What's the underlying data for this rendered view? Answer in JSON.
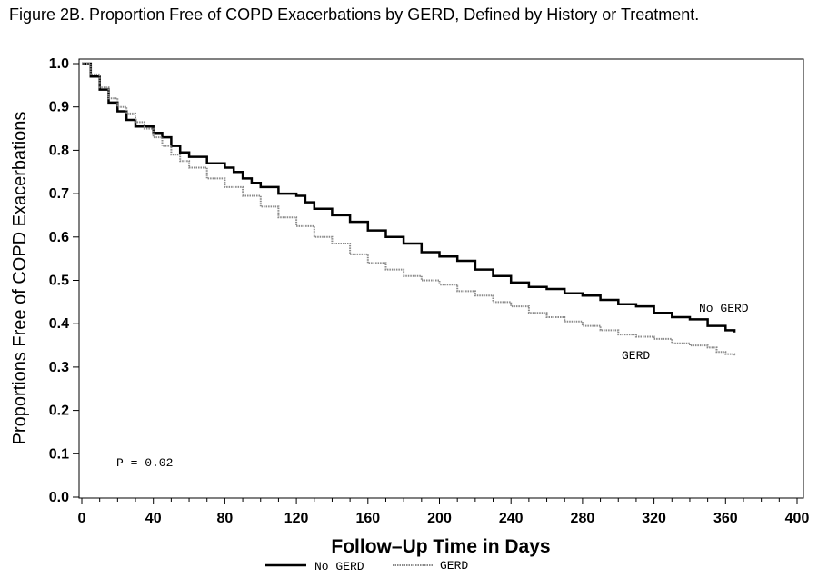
{
  "figure_title": "Figure 2B. Proportion Free of COPD Exacerbations by GERD, Defined by History or Treatment.",
  "chart_data": {
    "type": "line",
    "step": true,
    "xlabel": "Follow–Up Time in Days",
    "ylabel": "Proportions Free of COPD Exacerbations",
    "xlim": [
      0,
      400
    ],
    "ylim": [
      0,
      1.0
    ],
    "x_ticks": [
      "0",
      "40",
      "80",
      "120",
      "160",
      "200",
      "240",
      "280",
      "320",
      "360",
      "400"
    ],
    "y_ticks": [
      "0.0",
      "0.1",
      "0.2",
      "0.3",
      "0.4",
      "0.5",
      "0.6",
      "0.7",
      "0.8",
      "0.9",
      "1.0"
    ],
    "grid": false,
    "annotation": "P = 0.02",
    "legend_position": "bottom",
    "series": [
      {
        "name": "No GERD",
        "color": "#000000",
        "style": "solid",
        "end_label": "No GERD",
        "points": [
          [
            0,
            1.0
          ],
          [
            5,
            0.97
          ],
          [
            10,
            0.94
          ],
          [
            15,
            0.91
          ],
          [
            20,
            0.89
          ],
          [
            25,
            0.87
          ],
          [
            30,
            0.855
          ],
          [
            40,
            0.84
          ],
          [
            45,
            0.83
          ],
          [
            50,
            0.81
          ],
          [
            55,
            0.795
          ],
          [
            60,
            0.785
          ],
          [
            70,
            0.77
          ],
          [
            80,
            0.76
          ],
          [
            85,
            0.75
          ],
          [
            90,
            0.735
          ],
          [
            95,
            0.725
          ],
          [
            100,
            0.715
          ],
          [
            110,
            0.7
          ],
          [
            120,
            0.695
          ],
          [
            125,
            0.68
          ],
          [
            130,
            0.665
          ],
          [
            140,
            0.65
          ],
          [
            150,
            0.635
          ],
          [
            160,
            0.615
          ],
          [
            170,
            0.6
          ],
          [
            180,
            0.585
          ],
          [
            190,
            0.565
          ],
          [
            200,
            0.555
          ],
          [
            210,
            0.545
          ],
          [
            220,
            0.525
          ],
          [
            230,
            0.51
          ],
          [
            240,
            0.495
          ],
          [
            250,
            0.485
          ],
          [
            260,
            0.48
          ],
          [
            270,
            0.47
          ],
          [
            280,
            0.465
          ],
          [
            290,
            0.455
          ],
          [
            300,
            0.445
          ],
          [
            310,
            0.44
          ],
          [
            320,
            0.425
          ],
          [
            330,
            0.415
          ],
          [
            340,
            0.41
          ],
          [
            350,
            0.395
          ],
          [
            360,
            0.385
          ],
          [
            365,
            0.38
          ]
        ]
      },
      {
        "name": "GERD",
        "color": "#8a8a8a",
        "style": "dotted",
        "end_label": "GERD",
        "points": [
          [
            0,
            1.0
          ],
          [
            5,
            0.975
          ],
          [
            10,
            0.945
          ],
          [
            15,
            0.92
          ],
          [
            20,
            0.9
          ],
          [
            25,
            0.885
          ],
          [
            30,
            0.865
          ],
          [
            35,
            0.85
          ],
          [
            40,
            0.83
          ],
          [
            45,
            0.81
          ],
          [
            50,
            0.79
          ],
          [
            55,
            0.775
          ],
          [
            60,
            0.76
          ],
          [
            70,
            0.735
          ],
          [
            80,
            0.715
          ],
          [
            90,
            0.695
          ],
          [
            100,
            0.67
          ],
          [
            110,
            0.645
          ],
          [
            120,
            0.625
          ],
          [
            130,
            0.6
          ],
          [
            140,
            0.585
          ],
          [
            150,
            0.56
          ],
          [
            160,
            0.54
          ],
          [
            170,
            0.525
          ],
          [
            180,
            0.51
          ],
          [
            190,
            0.5
          ],
          [
            200,
            0.49
          ],
          [
            210,
            0.475
          ],
          [
            220,
            0.465
          ],
          [
            230,
            0.45
          ],
          [
            240,
            0.44
          ],
          [
            250,
            0.425
          ],
          [
            260,
            0.415
          ],
          [
            270,
            0.405
          ],
          [
            280,
            0.395
          ],
          [
            290,
            0.385
          ],
          [
            300,
            0.375
          ],
          [
            310,
            0.37
          ],
          [
            320,
            0.365
          ],
          [
            330,
            0.355
          ],
          [
            340,
            0.35
          ],
          [
            350,
            0.345
          ],
          [
            355,
            0.335
          ],
          [
            360,
            0.33
          ],
          [
            365,
            0.325
          ]
        ]
      }
    ]
  }
}
